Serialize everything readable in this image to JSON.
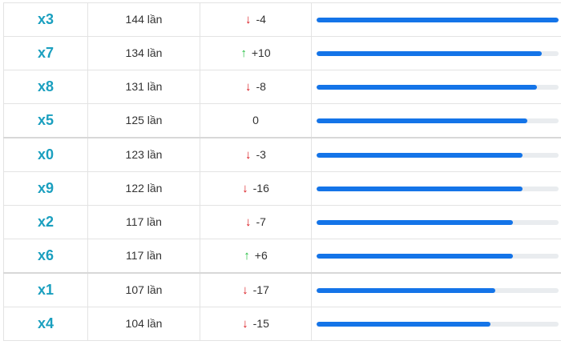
{
  "colors": {
    "number": "#1a9fbf",
    "bar_fill": "#1474e8",
    "bar_track": "#e9ecef",
    "arrow_down": "#d9161c",
    "arrow_up": "#1ebd3c"
  },
  "rows": [
    {
      "number": "x3",
      "count": "144 lần",
      "direction": "down",
      "change": "-4",
      "fill": 1.0
    },
    {
      "number": "x7",
      "count": "134 lần",
      "direction": "up",
      "change": "+10",
      "fill": 0.93
    },
    {
      "number": "x8",
      "count": "131 lần",
      "direction": "down",
      "change": "-8",
      "fill": 0.91
    },
    {
      "number": "x5",
      "count": "125 lần",
      "direction": "none",
      "change": "0",
      "fill": 0.87
    },
    {
      "number": "x0",
      "count": "123 lần",
      "direction": "down",
      "change": "-3",
      "fill": 0.85
    },
    {
      "number": "x9",
      "count": "122 lần",
      "direction": "down",
      "change": "-16",
      "fill": 0.85
    },
    {
      "number": "x2",
      "count": "117 lần",
      "direction": "down",
      "change": "-7",
      "fill": 0.81
    },
    {
      "number": "x6",
      "count": "117 lần",
      "direction": "up",
      "change": "+6",
      "fill": 0.81
    },
    {
      "number": "x1",
      "count": "107 lần",
      "direction": "down",
      "change": "-17",
      "fill": 0.74
    },
    {
      "number": "x4",
      "count": "104 lần",
      "direction": "down",
      "change": "-15",
      "fill": 0.72
    }
  ]
}
